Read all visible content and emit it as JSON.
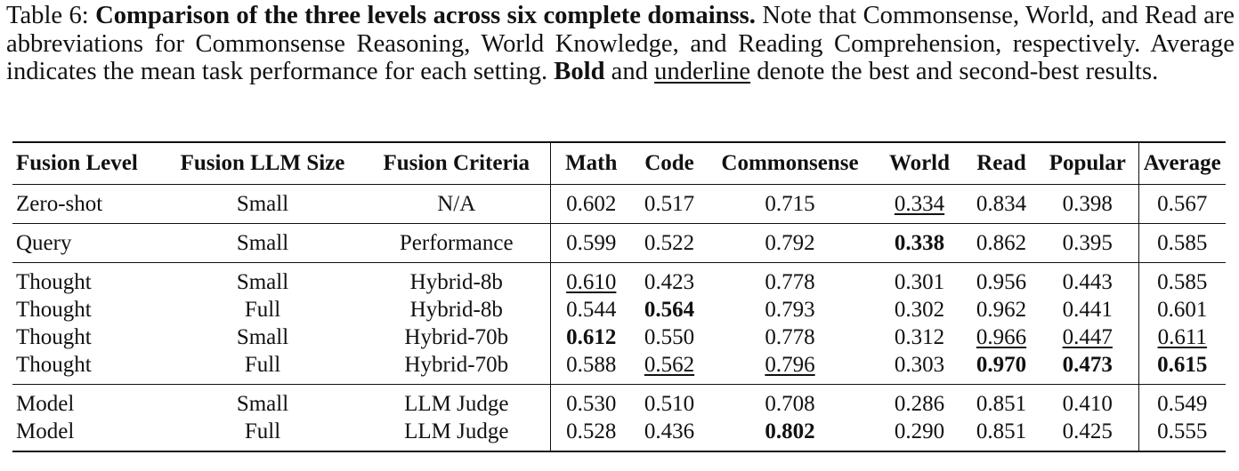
{
  "caption": {
    "prefix": "Table 6: ",
    "title": "Comparison of the three levels across six complete domainss.",
    "text1": " Note that Commonsense, World, and Read are abbreviations for Commonsense Reasoning, World Knowledge, and Reading Comprehension, respectively. Average indicates the mean task performance for each setting. ",
    "bold_word": "Bold",
    "text2": " and ",
    "underline_word": "underline",
    "text3": " denote the best and second-best results."
  },
  "columns": [
    "Fusion Level",
    "Fusion LLM Size",
    "Fusion Criteria",
    "Math",
    "Code",
    "Commonsense",
    "World",
    "Read",
    "Popular",
    "Average"
  ],
  "groups": [
    {
      "rows": [
        {
          "level": "Zero-shot",
          "size": "Small",
          "criteria": "N/A",
          "math": "0.602",
          "code": "0.517",
          "commonsense": "0.715",
          "world": "0.334",
          "read": "0.834",
          "popular": "0.398",
          "average": "0.567"
        }
      ]
    },
    {
      "rows": [
        {
          "level": "Query",
          "size": "Small",
          "criteria": "Performance",
          "math": "0.599",
          "code": "0.522",
          "commonsense": "0.792",
          "world": "0.338",
          "read": "0.862",
          "popular": "0.395",
          "average": "0.585"
        }
      ]
    },
    {
      "rows": [
        {
          "level": "Thought",
          "size": "Small",
          "criteria": "Hybrid-8b",
          "math": "0.610",
          "code": "0.423",
          "commonsense": "0.778",
          "world": "0.301",
          "read": "0.956",
          "popular": "0.443",
          "average": "0.585"
        },
        {
          "level": "Thought",
          "size": "Full",
          "criteria": "Hybrid-8b",
          "math": "0.544",
          "code": "0.564",
          "commonsense": "0.793",
          "world": "0.302",
          "read": "0.962",
          "popular": "0.441",
          "average": "0.601"
        },
        {
          "level": "Thought",
          "size": "Small",
          "criteria": "Hybrid-70b",
          "math": "0.612",
          "code": "0.550",
          "commonsense": "0.778",
          "world": "0.312",
          "read": "0.966",
          "popular": "0.447",
          "average": "0.611"
        },
        {
          "level": "Thought",
          "size": "Full",
          "criteria": "Hybrid-70b",
          "math": "0.588",
          "code": "0.562",
          "commonsense": "0.796",
          "world": "0.303",
          "read": "0.970",
          "popular": "0.473",
          "average": "0.615"
        }
      ]
    },
    {
      "rows": [
        {
          "level": "Model",
          "size": "Small",
          "criteria": "LLM Judge",
          "math": "0.530",
          "code": "0.510",
          "commonsense": "0.708",
          "world": "0.286",
          "read": "0.851",
          "popular": "0.410",
          "average": "0.549"
        },
        {
          "level": "Model",
          "size": "Full",
          "criteria": "LLM Judge",
          "math": "0.528",
          "code": "0.436",
          "commonsense": "0.802",
          "world": "0.290",
          "read": "0.851",
          "popular": "0.425",
          "average": "0.555"
        }
      ]
    }
  ]
}
